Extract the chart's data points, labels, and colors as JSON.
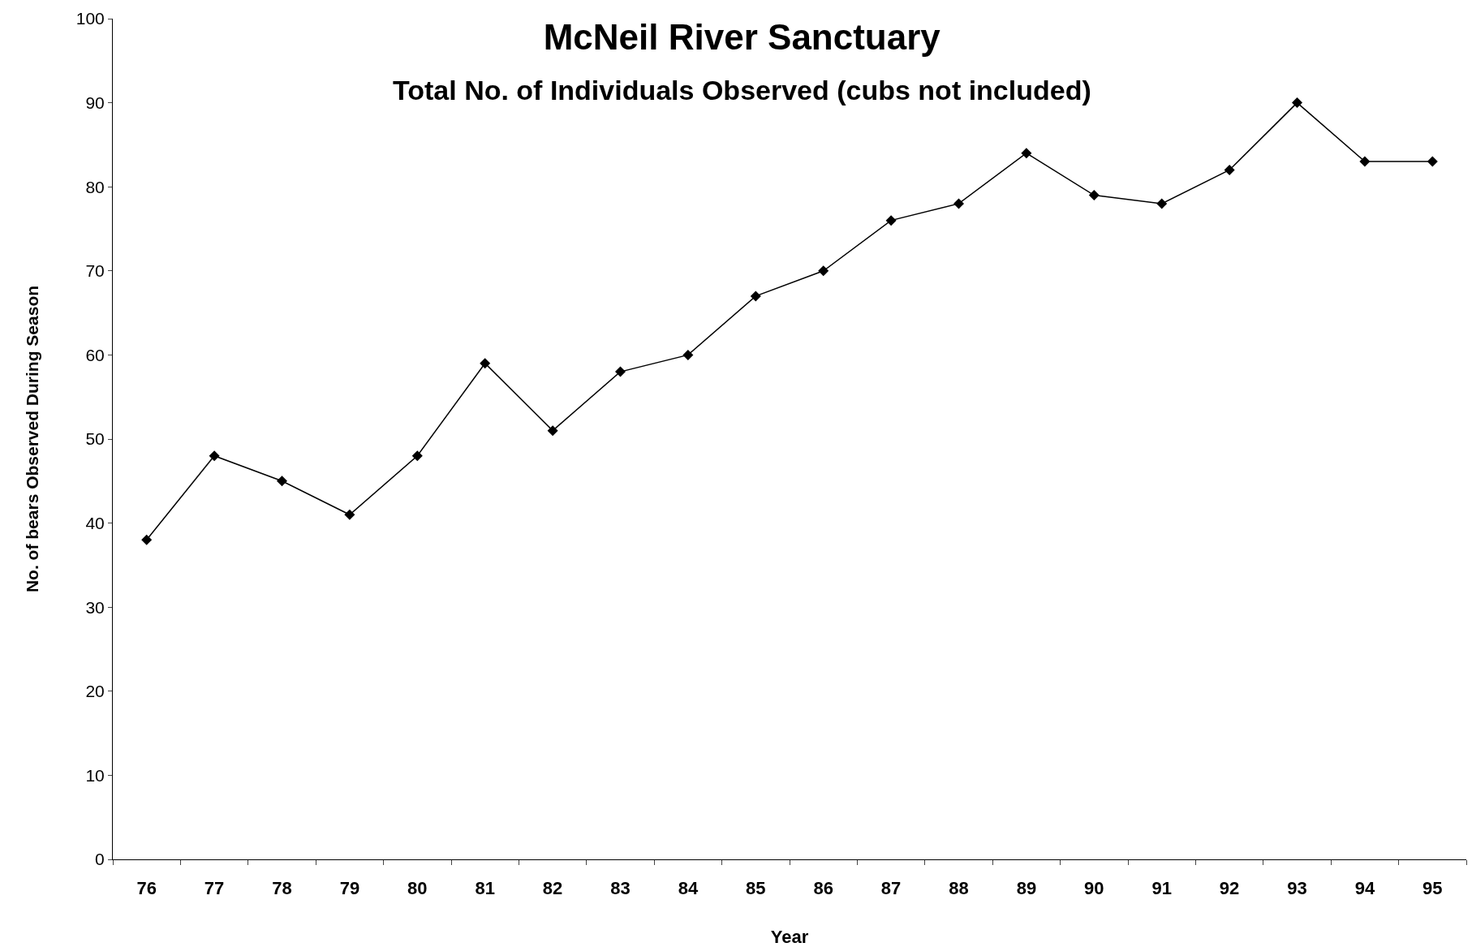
{
  "chart_data": {
    "type": "line",
    "title": "McNeil River Sanctuary",
    "subtitle": "Total No. of Individuals Observed (cubs not included)",
    "xlabel": "Year",
    "ylabel": "No. of bears Observed During Season",
    "categories": [
      "76",
      "77",
      "78",
      "79",
      "80",
      "81",
      "82",
      "83",
      "84",
      "85",
      "86",
      "87",
      "88",
      "89",
      "90",
      "91",
      "92",
      "93",
      "94",
      "95"
    ],
    "series": [
      {
        "color": "#000000",
        "values": [
          38,
          48,
          45,
          41,
          48,
          59,
          51,
          58,
          60,
          67,
          70,
          76,
          78,
          84,
          79,
          78,
          82,
          90,
          83,
          83
        ]
      }
    ],
    "ylim": [
      0,
      100
    ],
    "yticks": [
      0,
      10,
      20,
      30,
      40,
      50,
      60,
      70,
      80,
      90,
      100
    ],
    "grid": false,
    "marker": "diamond",
    "line_style": "solid"
  }
}
